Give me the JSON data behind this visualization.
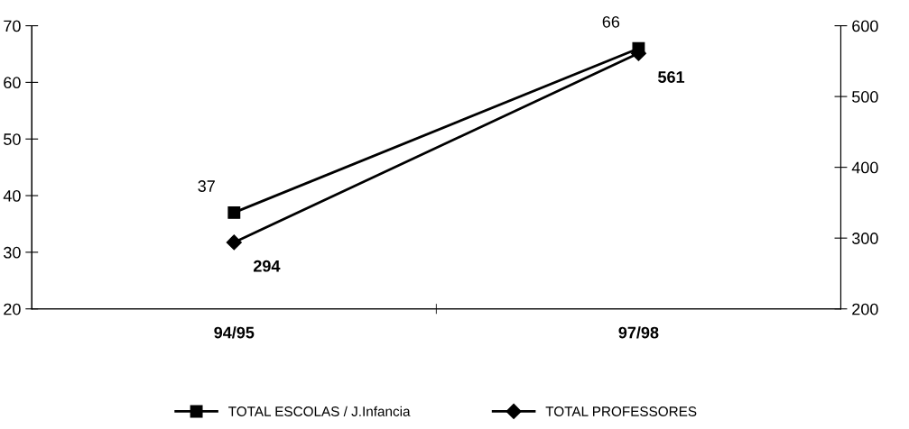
{
  "chart_data": {
    "type": "line",
    "categories": [
      "94/95",
      "97/98"
    ],
    "series": [
      {
        "name": "TOTAL ESCOLAS / J.Infancia",
        "color": "#000000",
        "values": [
          37,
          66
        ],
        "marker": "square"
      },
      {
        "name": "TOTAL PROFESSORES",
        "color": "#000000",
        "values": [
          294,
          561
        ],
        "marker": "diamond",
        "axis": "y2"
      }
    ],
    "ylim": [
      20,
      70
    ],
    "yticks": [
      20,
      30,
      40,
      50,
      60,
      70
    ],
    "y2lim": [
      200,
      600
    ],
    "y2ticks": [
      200,
      300,
      400,
      500,
      600
    ],
    "data_labels": true,
    "legend": "bottom",
    "grid": false,
    "line_style": "solid"
  }
}
